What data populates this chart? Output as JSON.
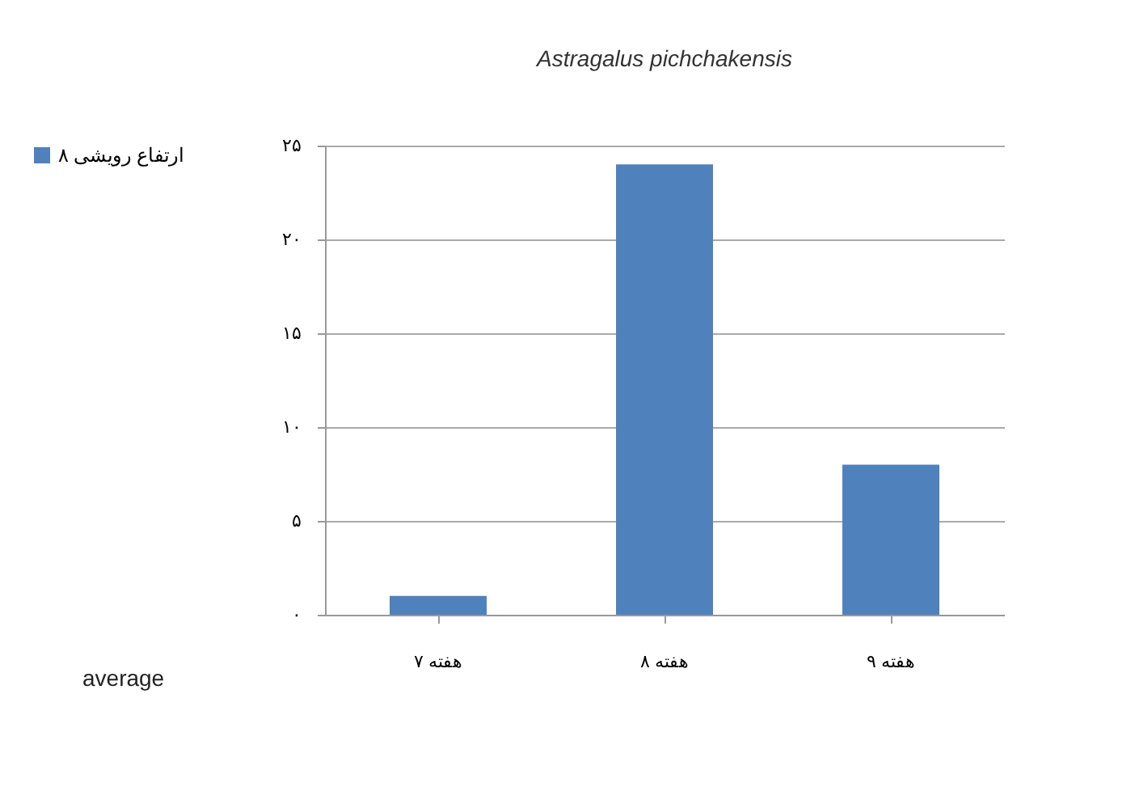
{
  "chart_data": {
    "type": "bar",
    "title": "Astragalus pichchakensis",
    "annotations": [
      "average"
    ],
    "categories": [
      "هفته ۷",
      "هفته ۸",
      "هفته ۹"
    ],
    "series": [
      {
        "name": "ارتفاع رویشی ۸",
        "color": "#4f81bd",
        "values": [
          1,
          24,
          8
        ]
      }
    ],
    "ylim": [
      0,
      25
    ],
    "yticks": [
      {
        "value": 0,
        "label": "۰"
      },
      {
        "value": 5,
        "label": "۵"
      },
      {
        "value": 10,
        "label": "۱۰"
      },
      {
        "value": 15,
        "label": "۱۵"
      },
      {
        "value": 20,
        "label": "۲۰"
      },
      {
        "value": 25,
        "label": "۲۵"
      }
    ],
    "grid": "y",
    "legend": "left"
  }
}
